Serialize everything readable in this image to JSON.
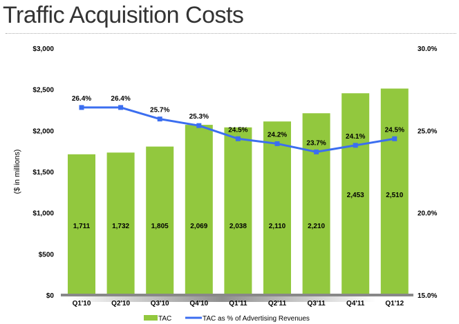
{
  "chart_data": {
    "type": "bar+line",
    "title": "Traffic Acquisition Costs",
    "ylabel": "($ in millions)",
    "categories": [
      "Q1'10",
      "Q2'10",
      "Q3'10",
      "Q4'10",
      "Q1'11",
      "Q2'11",
      "Q3'11",
      "Q4'11",
      "Q1'12"
    ],
    "series": [
      {
        "name": "TAC",
        "type": "bar",
        "axis": "left",
        "color": "#92C83E",
        "values": [
          1711,
          1732,
          1805,
          2069,
          2038,
          2110,
          2210,
          2453,
          2510
        ],
        "labels": [
          "1,711",
          "1,732",
          "1,805",
          "2,069",
          "2,038",
          "2,110",
          "2,210",
          "2,453",
          "2,510"
        ]
      },
      {
        "name": "TAC as % of Advertising Revenues",
        "type": "line",
        "axis": "right",
        "color": "#3B6EF0",
        "values": [
          26.4,
          26.4,
          25.7,
          25.3,
          24.5,
          24.2,
          23.7,
          24.1,
          24.5
        ],
        "labels": [
          "26.4%",
          "26.4%",
          "25.7%",
          "25.3%",
          "24.5%",
          "24.2%",
          "23.7%",
          "24.1%",
          "24.5%"
        ]
      }
    ],
    "ylim": [
      0,
      3000
    ],
    "y2lim": [
      15,
      30
    ],
    "yticks": [
      {
        "v": 0,
        "t": "$0"
      },
      {
        "v": 500,
        "t": "$500"
      },
      {
        "v": 1000,
        "t": "$1,000"
      },
      {
        "v": 1500,
        "t": "$1,500"
      },
      {
        "v": 2000,
        "t": "$2,000"
      },
      {
        "v": 2500,
        "t": "$2,500"
      },
      {
        "v": 3000,
        "t": "$3,000"
      }
    ],
    "y2ticks": [
      {
        "v": 15,
        "t": "15.0%"
      },
      {
        "v": 20,
        "t": "20.0%"
      },
      {
        "v": 25,
        "t": "25.0%"
      },
      {
        "v": 30,
        "t": "30.0%"
      }
    ],
    "grid": false,
    "legend": "bottom"
  }
}
